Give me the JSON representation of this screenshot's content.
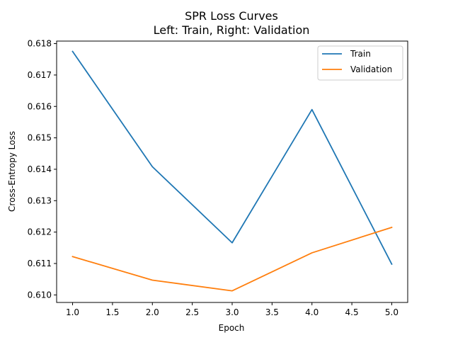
{
  "chart_data": {
    "type": "line",
    "title": "SPR Loss Curves",
    "subtitle": "Left: Train, Right: Validation",
    "xlabel": "Epoch",
    "ylabel": "Cross-Entropy Loss",
    "x": [
      1,
      2,
      3,
      4,
      5
    ],
    "xlim": [
      0.8,
      5.2
    ],
    "ylim": [
      0.60976,
      0.61808
    ],
    "xticks": [
      "1.0",
      "1.5",
      "2.0",
      "2.5",
      "3.0",
      "3.5",
      "4.0",
      "4.5",
      "5.0"
    ],
    "yticks": [
      "0.610",
      "0.611",
      "0.612",
      "0.613",
      "0.614",
      "0.615",
      "0.616",
      "0.617",
      "0.618"
    ],
    "grid": false,
    "legend_position": "top-right",
    "series": [
      {
        "name": "Train",
        "color": "#1f77b4",
        "values": [
          0.61775,
          0.61408,
          0.61166,
          0.6159,
          0.61098
        ]
      },
      {
        "name": "Validation",
        "color": "#ff7f0e",
        "values": [
          0.61122,
          0.61047,
          0.61013,
          0.61134,
          0.61215
        ]
      }
    ]
  }
}
